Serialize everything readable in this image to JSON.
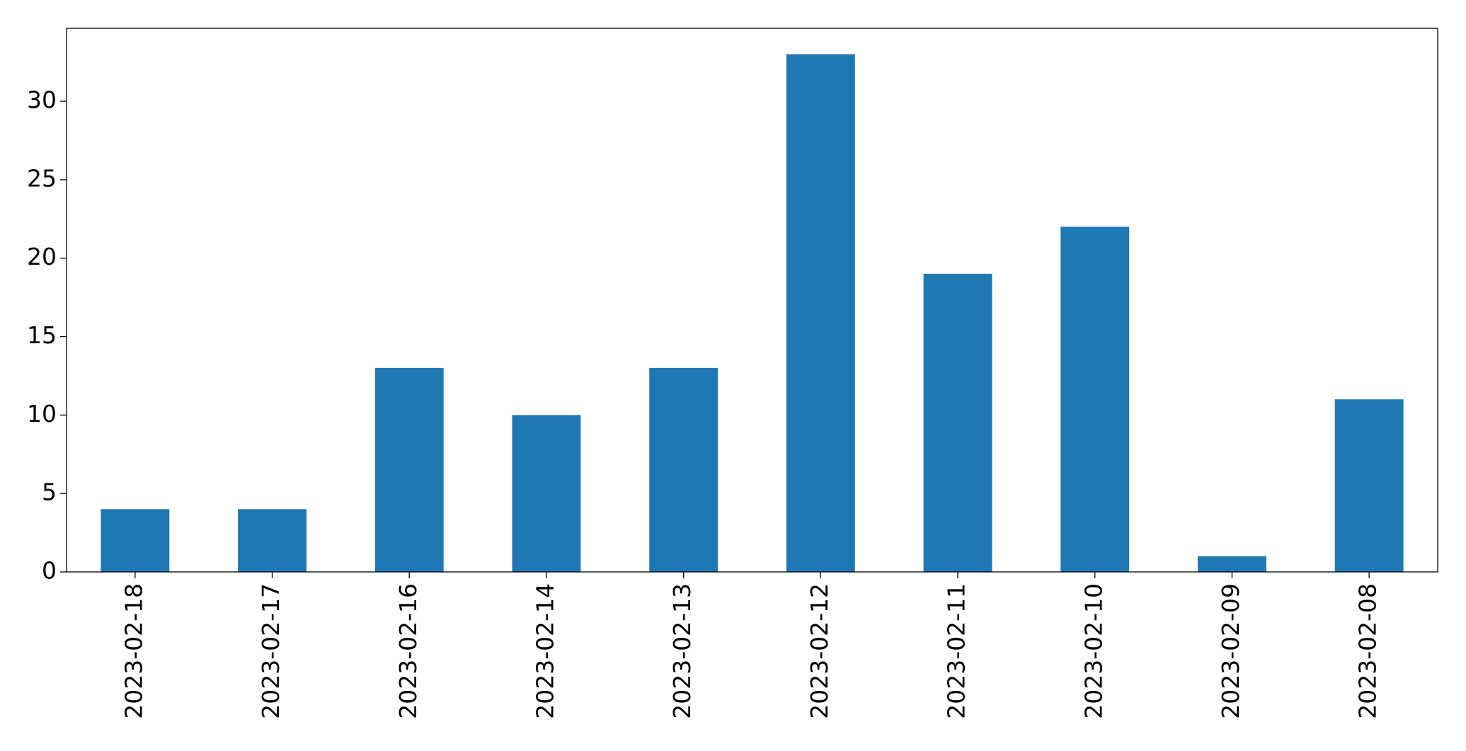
{
  "chart_data": {
    "type": "bar",
    "categories": [
      "2023-02-18",
      "2023-02-17",
      "2023-02-16",
      "2023-02-14",
      "2023-02-13",
      "2023-02-12",
      "2023-02-11",
      "2023-02-10",
      "2023-02-09",
      "2023-02-08"
    ],
    "values": [
      4,
      4,
      13,
      10,
      13,
      33,
      19,
      22,
      1,
      11
    ],
    "color": "#1f77b4",
    "ylim": [
      0,
      34.65
    ],
    "yticks": [
      0,
      5,
      10,
      15,
      20,
      25,
      30
    ],
    "grid": false
  }
}
